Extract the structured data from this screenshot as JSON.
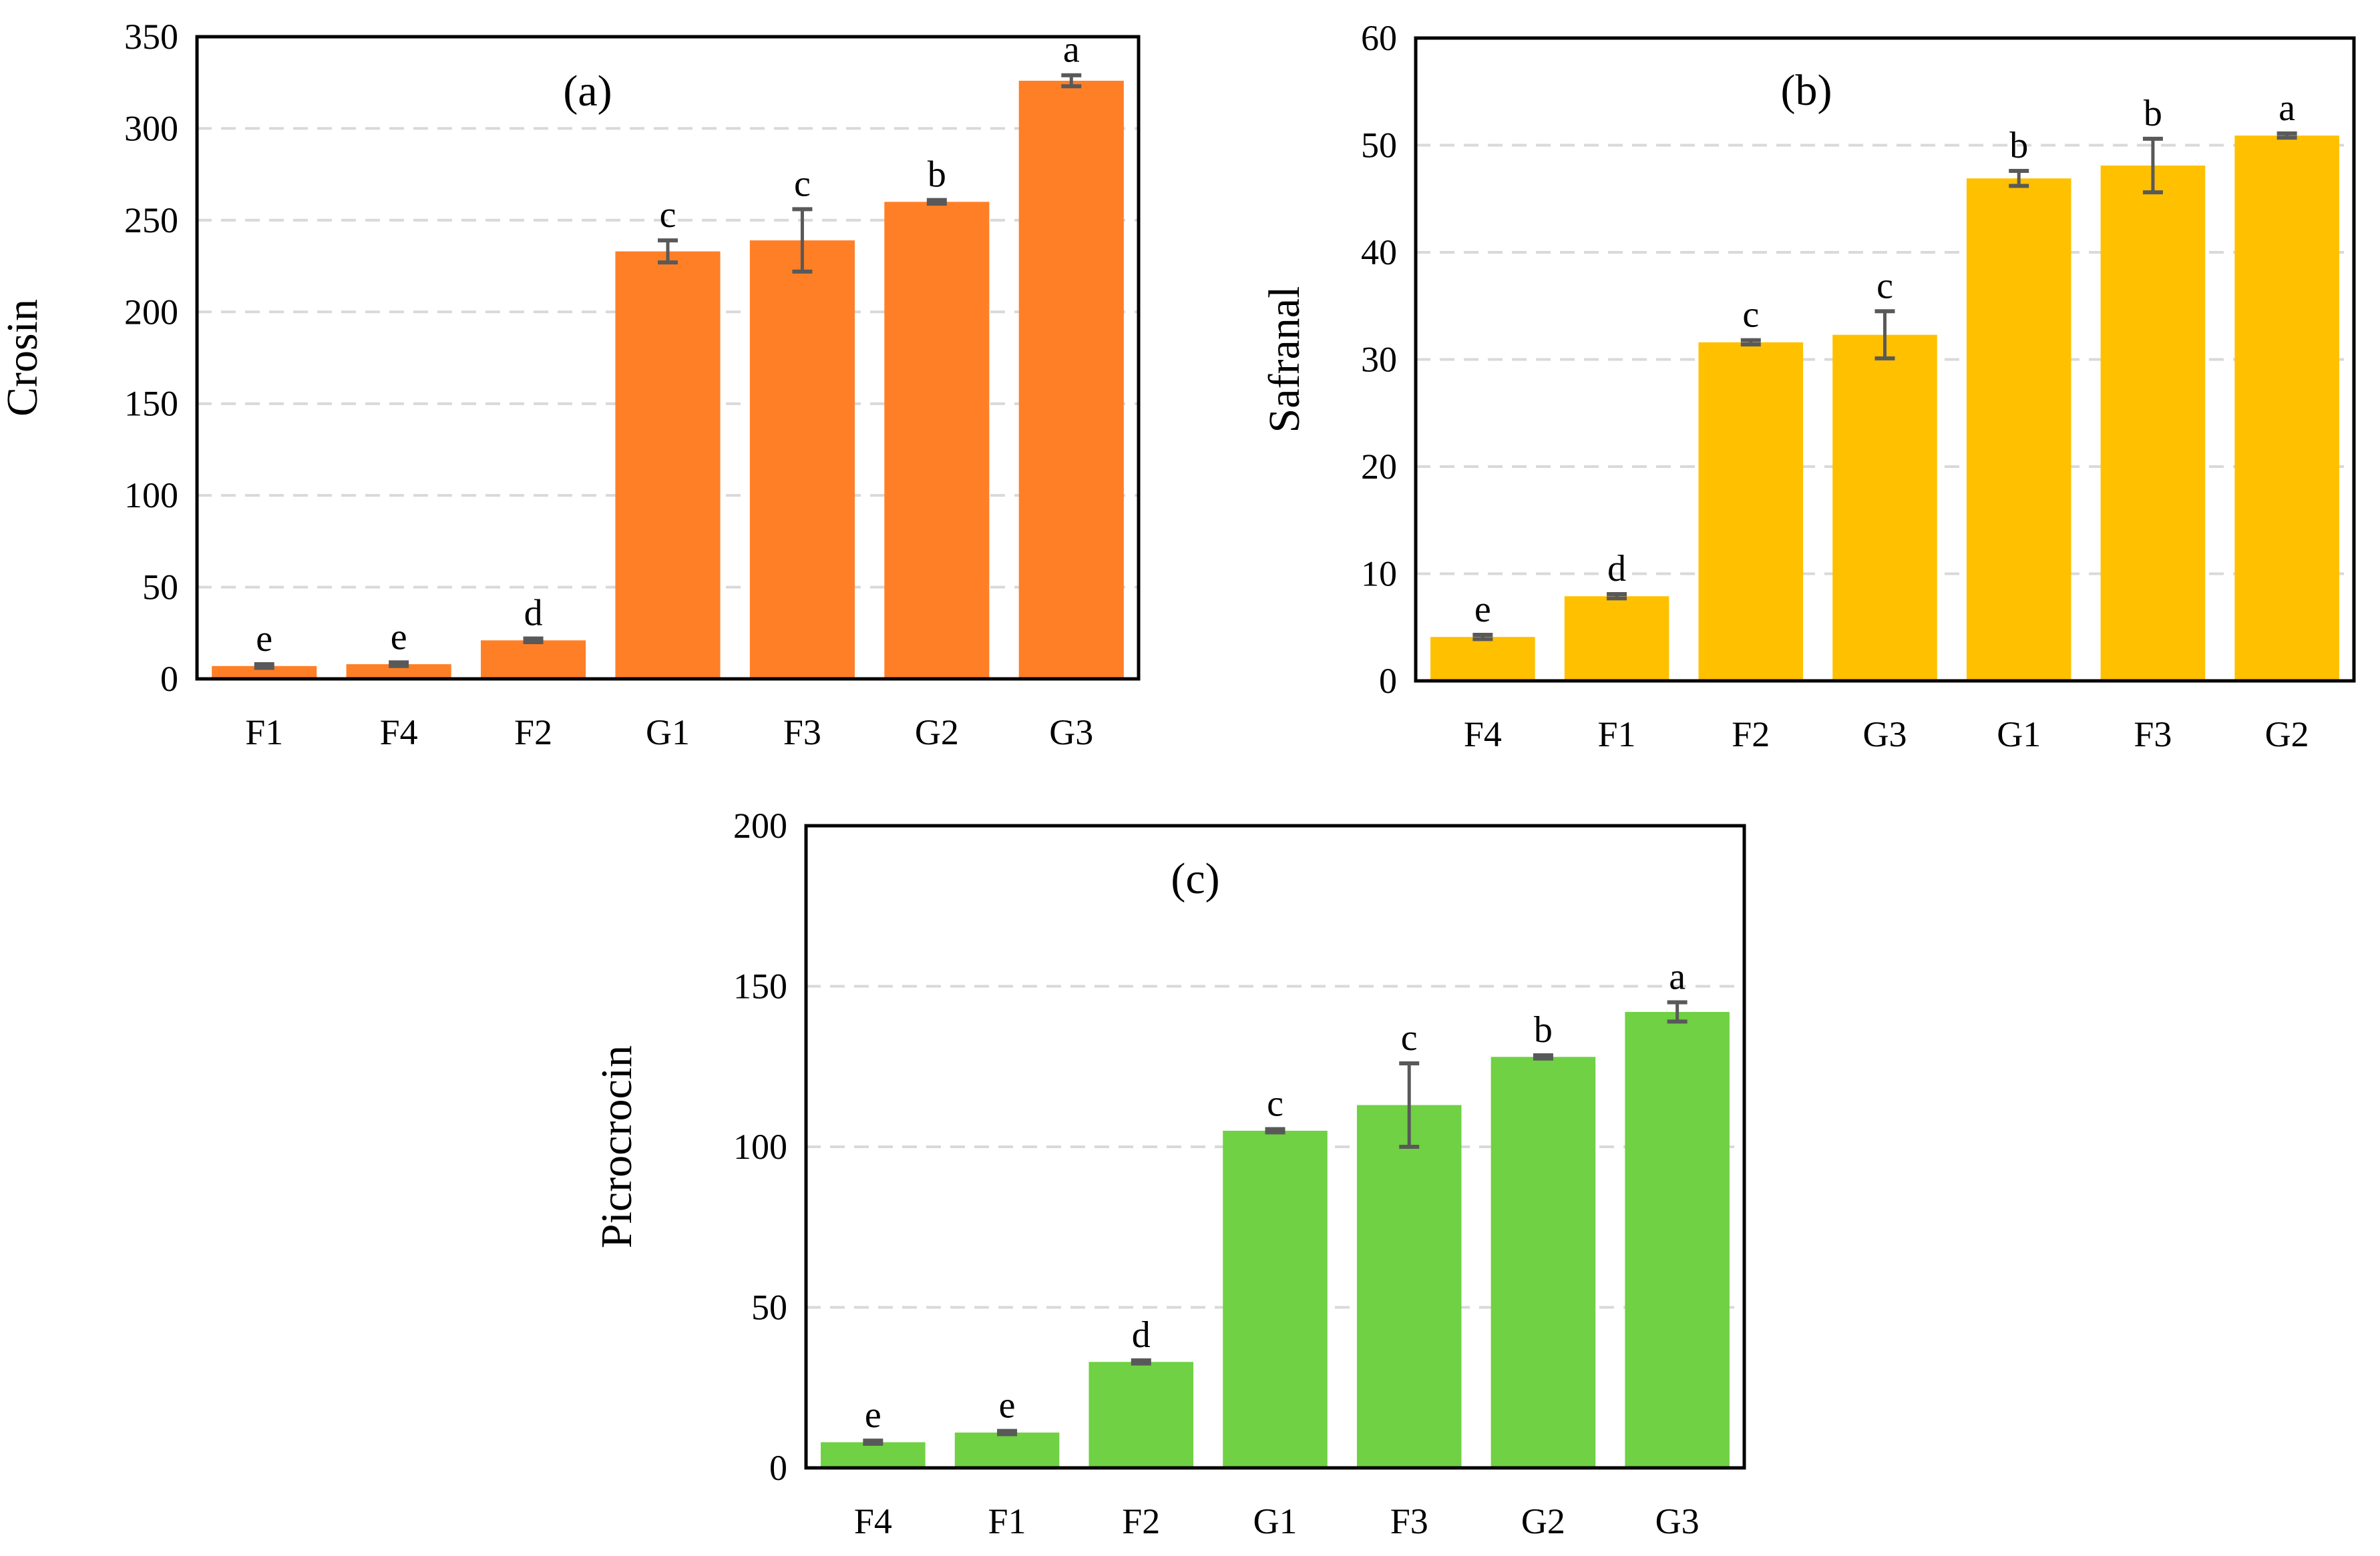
{
  "chart_data": [
    {
      "type": "bar",
      "panel_label": "(a)",
      "title": "",
      "xlabel": "",
      "ylabel": "Crosin",
      "categories": [
        "F1",
        "F4",
        "F2",
        "G1",
        "F3",
        "G2",
        "G3"
      ],
      "values": [
        7,
        8,
        21,
        233,
        239,
        260,
        326
      ],
      "errors": [
        1,
        1,
        1,
        6,
        17,
        1,
        3
      ],
      "letters": [
        "e",
        "e",
        "d",
        "c",
        "c",
        "b",
        "a"
      ],
      "ylim": [
        0,
        350
      ],
      "yticks": [
        0,
        50,
        100,
        150,
        200,
        250,
        300,
        350
      ],
      "grid": true,
      "color": "#FF7F27"
    },
    {
      "type": "bar",
      "panel_label": "(b)",
      "title": "",
      "xlabel": "",
      "ylabel": "Safranal",
      "categories": [
        "F4",
        "F1",
        "F2",
        "G3",
        "G1",
        "F3",
        "G2"
      ],
      "values": [
        4.1,
        7.9,
        31.6,
        32.3,
        46.9,
        48.1,
        50.9
      ],
      "errors": [
        0.2,
        0.2,
        0.2,
        2.2,
        0.7,
        2.5,
        0.2
      ],
      "letters": [
        "e",
        "d",
        "c",
        "c",
        "b",
        "b",
        "a"
      ],
      "ylim": [
        0,
        60
      ],
      "yticks": [
        0,
        10,
        20,
        30,
        40,
        50,
        60
      ],
      "grid": true,
      "color": "#FFC000"
    },
    {
      "type": "bar",
      "panel_label": "(c)",
      "title": "",
      "xlabel": "",
      "ylabel": "Picrocrocin",
      "categories": [
        "F4",
        "F1",
        "F2",
        "G1",
        "F3",
        "G2",
        "G3"
      ],
      "values": [
        8,
        11,
        33,
        105,
        113,
        128,
        142
      ],
      "errors": [
        0.5,
        0.5,
        0.5,
        0.5,
        13,
        0.5,
        3
      ],
      "letters": [
        "e",
        "e",
        "d",
        "c",
        "c",
        "b",
        "a"
      ],
      "ylim": [
        0,
        200
      ],
      "yticks": [
        0,
        50,
        100,
        150,
        200
      ],
      "grid": true,
      "color": "#6FD143"
    }
  ]
}
